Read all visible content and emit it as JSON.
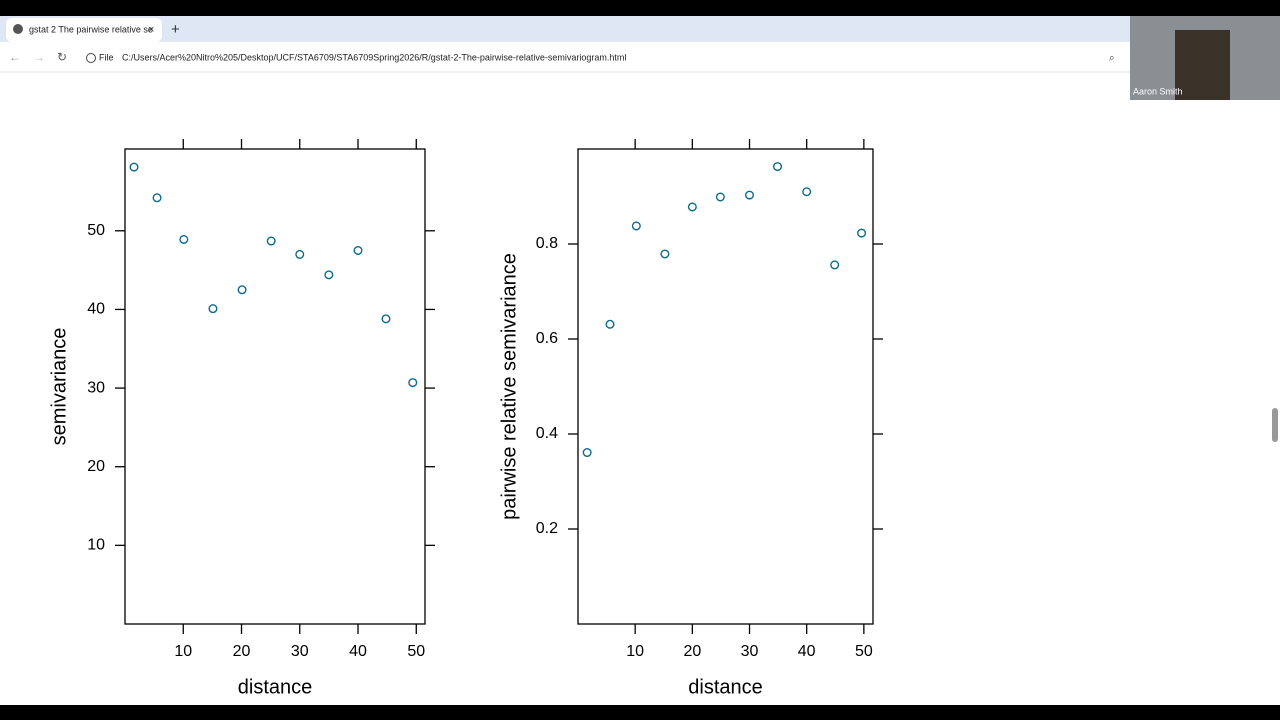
{
  "browser": {
    "tab_title": "gstat 2 The pairwise relative se",
    "address_label": "File",
    "url": "C:/Users/Acer%20Nitro%205/Desktop/UCF/STA6709/STA6709Spring2026/R/gstat-2-The-pairwise-relative-semivariogram.html",
    "participant": "Aaron Smith"
  },
  "chart_data": [
    {
      "type": "scatter",
      "xlabel": "distance",
      "ylabel": "semivariance",
      "x": [
        1.55,
        5.5,
        10.1,
        15.1,
        20.1,
        25.1,
        30.0,
        35.0,
        40.0,
        44.8,
        49.4
      ],
      "series": [
        {
          "color": "#0a6a8c",
          "values": [
            58.1,
            54.2,
            48.9,
            40.1,
            42.5,
            48.7,
            47.0,
            44.4,
            47.5,
            38.8,
            30.7
          ]
        }
      ],
      "xlim": [
        0,
        51.5
      ],
      "ylim": [
        0,
        60.4
      ],
      "xticks": [
        10,
        20,
        30,
        40,
        50
      ],
      "yticks": [
        10,
        20,
        30,
        40,
        50
      ]
    },
    {
      "type": "scatter",
      "xlabel": "distance",
      "ylabel": "pairwise relative semivariance",
      "x": [
        1.6,
        5.6,
        10.2,
        15.2,
        20.0,
        24.9,
        30.0,
        34.9,
        40.0,
        44.9,
        49.6
      ],
      "series": [
        {
          "color": "#0a6a8c",
          "values": [
            0.361,
            0.631,
            0.838,
            0.779,
            0.878,
            0.899,
            0.903,
            0.963,
            0.91,
            0.756,
            0.823
          ]
        }
      ],
      "xlim": [
        0,
        51.6
      ],
      "ylim": [
        0,
        1.0
      ],
      "xticks": [
        10,
        20,
        30,
        40,
        50
      ],
      "yticks": [
        0.2,
        0.4,
        0.6,
        0.8
      ]
    }
  ]
}
